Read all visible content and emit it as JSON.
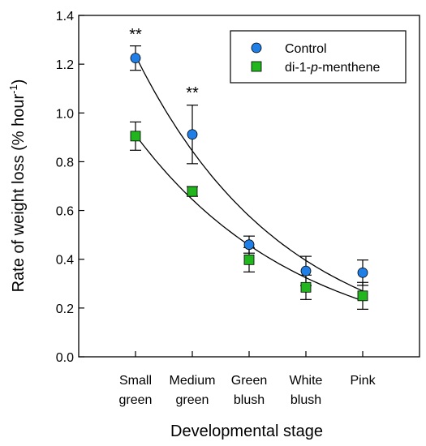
{
  "chart_data": {
    "type": "scatter",
    "xlabel": "Developmental stage",
    "ylabel_main": "Rate of weight loss (% hour",
    "ylabel_sup": "-1",
    "ylabel_close": ")",
    "categories": [
      [
        "Small",
        "green"
      ],
      [
        "Medium",
        "green"
      ],
      [
        "Green",
        "blush"
      ],
      [
        "White",
        "blush"
      ],
      [
        "Pink"
      ]
    ],
    "ylim": [
      0,
      1.4
    ],
    "yticks": [
      0,
      0.2,
      0.4,
      0.6,
      0.8,
      1.0,
      1.2,
      1.4
    ],
    "ytick_labels": [
      "0.0",
      "0.2",
      "0.4",
      "0.6",
      "0.8",
      "1.0",
      "1.2",
      "1.4"
    ],
    "legend_position": "top-right",
    "series": [
      {
        "name": "Control",
        "marker": "circle",
        "color": "#1f7fe6",
        "values": [
          1.225,
          0.912,
          0.46,
          0.352,
          0.345
        ],
        "errors": [
          0.05,
          0.12,
          0.035,
          0.06,
          0.052
        ]
      },
      {
        "name": "di-1-p-menthene",
        "name_prefix": "di-1-",
        "name_italic": "p",
        "name_suffix": "-menthene",
        "marker": "square",
        "color": "#22b61e",
        "values": [
          0.905,
          0.678,
          0.398,
          0.285,
          0.25
        ],
        "errors": [
          0.058,
          0.02,
          0.05,
          0.05,
          0.055
        ]
      }
    ],
    "fit_curves": [
      {
        "series": "Control",
        "start": 1.235,
        "end": 0.27
      },
      {
        "series": "di-1-p-menthene",
        "start": 0.91,
        "end": 0.23
      }
    ],
    "annotations": [
      {
        "category_index": 0,
        "text": "**",
        "y": 1.33
      },
      {
        "category_index": 1,
        "text": "**",
        "y": 1.09
      }
    ]
  }
}
